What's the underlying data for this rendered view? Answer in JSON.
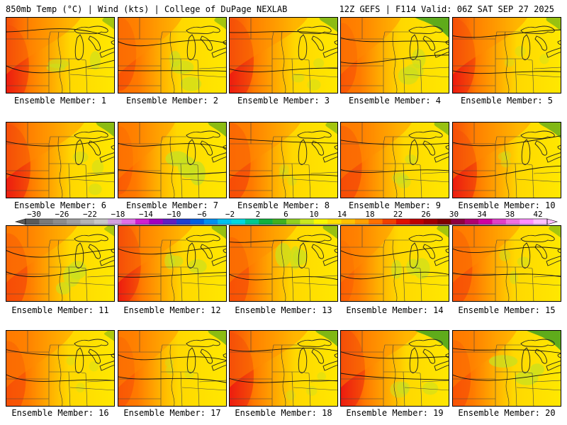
{
  "header": {
    "left": "850mb Temp (°C) | Wind (kts) | College of DuPage NEXLAB",
    "right": "12Z GEFS | F114 Valid: 06Z SAT SEP 27 2025"
  },
  "panels": [
    {
      "label": "Ensemble Member: 1",
      "member": 1,
      "hot": 0.9,
      "cold": 0.3,
      "green": 0.5
    },
    {
      "label": "Ensemble Member: 2",
      "member": 2,
      "hot": 0.6,
      "cold": 0.3,
      "green": 0.6
    },
    {
      "label": "Ensemble Member: 3",
      "member": 3,
      "hot": 1.0,
      "cold": 0.5,
      "green": 0.2
    },
    {
      "label": "Ensemble Member: 4",
      "member": 4,
      "hot": 0.5,
      "cold": 0.9,
      "green": 0.5
    },
    {
      "label": "Ensemble Member: 5",
      "member": 5,
      "hot": 0.9,
      "cold": 0.4,
      "green": 0.1
    },
    {
      "label": "Ensemble Member: 6",
      "member": 6,
      "hot": 1.0,
      "cold": 0.5,
      "green": 0.3
    },
    {
      "label": "Ensemble Member: 7",
      "member": 7,
      "hot": 0.4,
      "cold": 0.5,
      "green": 0.9
    },
    {
      "label": "Ensemble Member: 8",
      "member": 8,
      "hot": 0.8,
      "cold": 0.3,
      "green": 0.1
    },
    {
      "label": "Ensemble Member: 9",
      "member": 9,
      "hot": 0.8,
      "cold": 0.4,
      "green": 0.4
    },
    {
      "label": "Ensemble Member: 10",
      "member": 10,
      "hot": 1.0,
      "cold": 0.6,
      "green": 0.1
    },
    {
      "label": "Ensemble Member: 11",
      "member": 11,
      "hot": 0.8,
      "cold": 0.2,
      "green": 0.6
    },
    {
      "label": "Ensemble Member: 12",
      "member": 12,
      "hot": 0.9,
      "cold": 0.4,
      "green": 0.6
    },
    {
      "label": "Ensemble Member: 13",
      "member": 13,
      "hot": 0.7,
      "cold": 0.4,
      "green": 0.7
    },
    {
      "label": "Ensemble Member: 14",
      "member": 14,
      "hot": 0.3,
      "cold": 0.3,
      "green": 0.6
    },
    {
      "label": "Ensemble Member: 15",
      "member": 15,
      "hot": 0.7,
      "cold": 0.3,
      "green": 0.3
    },
    {
      "label": "Ensemble Member: 16",
      "member": 16,
      "hot": 0.7,
      "cold": 0.2,
      "green": 0.1
    },
    {
      "label": "Ensemble Member: 17",
      "member": 17,
      "hot": 0.5,
      "cold": 0.5,
      "green": 0.1
    },
    {
      "label": "Ensemble Member: 18",
      "member": 18,
      "hot": 1.0,
      "cold": 0.6,
      "green": 0.1
    },
    {
      "label": "Ensemble Member: 19",
      "member": 19,
      "hot": 1.0,
      "cold": 0.9,
      "green": 0.4
    },
    {
      "label": "Ensemble Member: 20",
      "member": 20,
      "hot": 0.6,
      "cold": 0.9,
      "green": 0.8
    }
  ],
  "colorbar": {
    "ticks": [
      "−30",
      "−26",
      "−22",
      "−18",
      "−14",
      "−10",
      "−6",
      "−2",
      "2",
      "6",
      "10",
      "14",
      "18",
      "22",
      "26",
      "30",
      "34",
      "38",
      "42"
    ],
    "colors": [
      "#5a5a5a",
      "#7a7a7a",
      "#8c8c8c",
      "#a0a0a0",
      "#b4b4b4",
      "#c8c8c8",
      "#d2a0e0",
      "#e070e8",
      "#d020d0",
      "#a000c0",
      "#6020c0",
      "#2040d0",
      "#0060e0",
      "#0090f0",
      "#00c0f0",
      "#00d8e0",
      "#00c890",
      "#10b040",
      "#40b020",
      "#90d020",
      "#c8e820",
      "#f8f800",
      "#ffe000",
      "#ffc000",
      "#ffa000",
      "#ff7000",
      "#f04000",
      "#e01000",
      "#c00000",
      "#a00000",
      "#800000",
      "#900040",
      "#b00070",
      "#d000a0",
      "#e040c8",
      "#f070e0",
      "#ff90ff",
      "#ffc0ff"
    ]
  }
}
